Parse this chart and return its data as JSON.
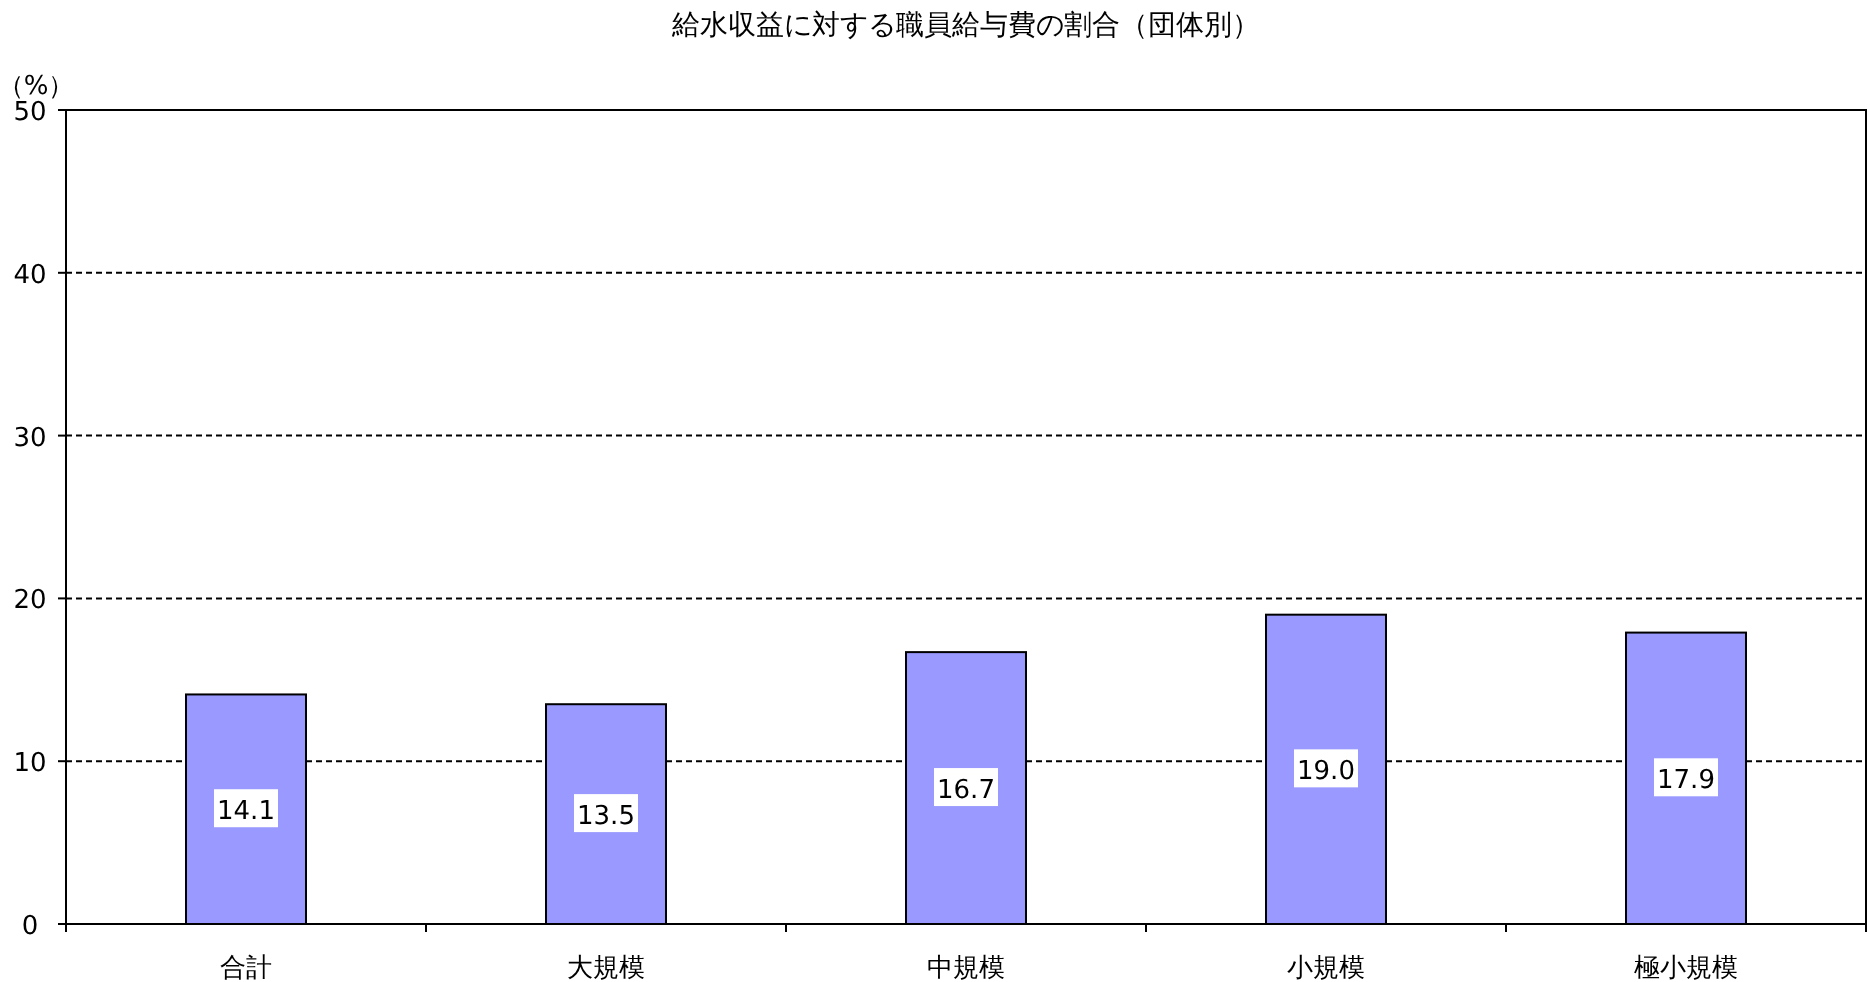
{
  "chart_data": {
    "type": "bar",
    "title": "給水収益に対する職員給与費の割合（団体別）",
    "ylabel": "（%）",
    "categories": [
      "合計",
      "大規模",
      "中規模",
      "小規模",
      "極小規模"
    ],
    "values": [
      14.1,
      13.5,
      16.7,
      19.0,
      17.9
    ],
    "value_labels": [
      "14.1",
      "13.5",
      "16.7",
      "19.0",
      "17.9"
    ],
    "color": "#9999ff",
    "ylim": [
      0,
      50
    ],
    "yticks": [
      0,
      10,
      20,
      30,
      40,
      50
    ],
    "grid": "y"
  }
}
